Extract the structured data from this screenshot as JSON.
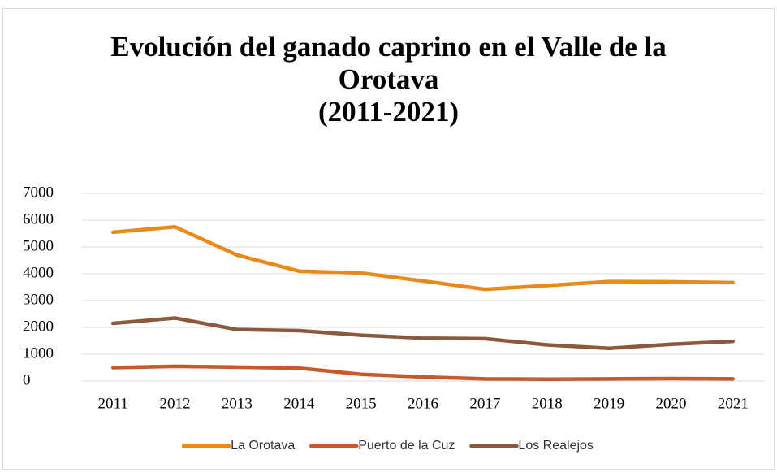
{
  "chart_data": {
    "type": "line",
    "title": "Evolución del ganado caprino en el Valle de la Orotava",
    "subtitle": "(2011-2021)",
    "categories": [
      "2011",
      "2012",
      "2013",
      "2014",
      "2015",
      "2016",
      "2017",
      "2018",
      "2019",
      "2020",
      "2021"
    ],
    "series": [
      {
        "name": "La Orotava",
        "color": "#e8891a",
        "values": [
          5550,
          5750,
          4700,
          4100,
          4030,
          3730,
          3420,
          3560,
          3710,
          3700,
          3670
        ]
      },
      {
        "name": "Puerto de la Cuz",
        "color": "#c65a2c",
        "values": [
          500,
          550,
          520,
          480,
          250,
          150,
          80,
          70,
          80,
          90,
          80
        ]
      },
      {
        "name": "Los Realejos",
        "color": "#8a5a3e",
        "values": [
          2150,
          2350,
          1920,
          1880,
          1710,
          1600,
          1580,
          1350,
          1220,
          1370,
          1480
        ]
      }
    ],
    "ylim": [
      0,
      7000
    ],
    "yticks": [
      0,
      1000,
      2000,
      3000,
      4000,
      5000,
      6000,
      7000
    ],
    "grid": true,
    "legend": "bottom"
  }
}
